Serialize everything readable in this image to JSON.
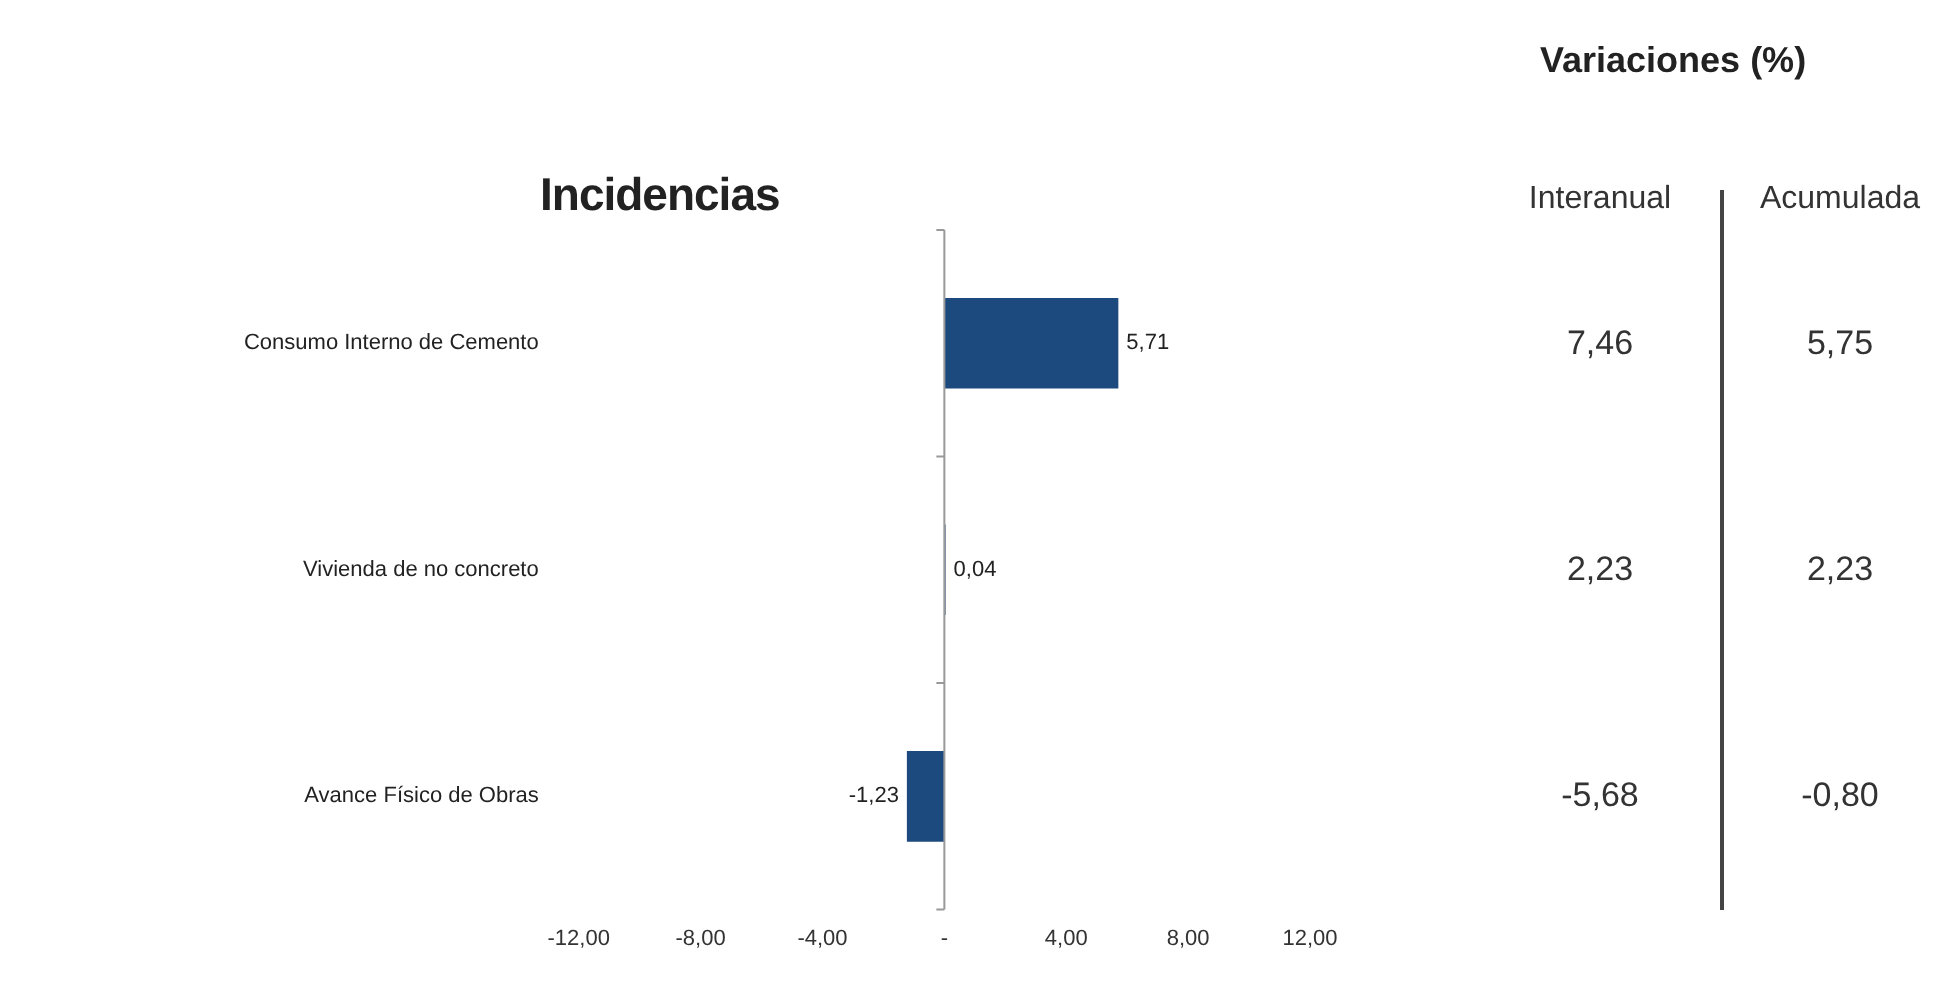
{
  "chart_data": [
    {
      "type": "bar",
      "title": "Incidencias",
      "orientation": "horizontal",
      "categories": [
        "Consumo Interno de Cemento",
        "Vivienda de no concreto",
        "Avance Físico de Obras"
      ],
      "values": [
        5.71,
        0.04,
        -1.23
      ],
      "color": "#1c4a7e",
      "value_labels": [
        "5,71",
        "0,04",
        "-1,23"
      ],
      "xlim": [
        -12,
        12
      ],
      "xticks": [
        {
          "value": -12,
          "label": "-12,00"
        },
        {
          "value": -8,
          "label": "-8,00"
        },
        {
          "value": -4,
          "label": "-4,00"
        },
        {
          "value": 0,
          "label": "-"
        },
        {
          "value": 4,
          "label": "4,00"
        },
        {
          "value": 8,
          "label": "8,00"
        },
        {
          "value": 12,
          "label": "12,00"
        }
      ],
      "ref_lines": [
        {
          "axis": "x",
          "value": 0,
          "color": "#999999"
        }
      ],
      "grid": false,
      "legend": false
    },
    {
      "type": "other",
      "title": "Variaciones (%)",
      "annotations": [
        "Interanual",
        "Acumulada",
        "7,46",
        "5,75",
        "2,23",
        "2,23",
        "-5,68",
        "-0,80"
      ]
    }
  ]
}
